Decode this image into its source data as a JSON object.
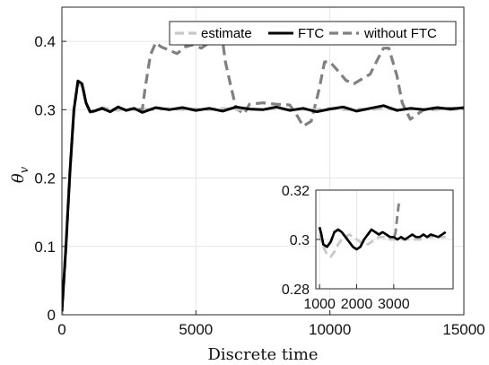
{
  "chart_data": [
    {
      "type": "line",
      "xlabel": "Discrete time",
      "ylabel": "θ",
      "ylabel_subscript": "v",
      "xlim": [
        0,
        15000
      ],
      "ylim": [
        0,
        0.45
      ],
      "xticks": [
        "0",
        "5000",
        "10000",
        "15000"
      ],
      "yticks": [
        "0",
        "0.1",
        "0.2",
        "0.3",
        "0.4"
      ],
      "xtick_values": [
        0,
        5000,
        10000,
        15000
      ],
      "ytick_values": [
        0,
        0.1,
        0.2,
        0.3,
        0.4
      ],
      "grid": true,
      "legend_position": "top-right",
      "series": [
        {
          "name": "estimate",
          "color": "#c8c8c8",
          "style": "dashed",
          "x": [
            0,
            150,
            300,
            450,
            600,
            750,
            900,
            1050,
            1200,
            1500,
            1800,
            2100,
            2400,
            2700,
            3000,
            3500,
            4000,
            4500,
            5000,
            5500,
            6000,
            6500,
            7000,
            7500,
            8000,
            8500,
            9000,
            9500,
            10000,
            10500,
            11000,
            11500,
            12000,
            12500,
            13000,
            13500,
            14000,
            14500,
            15000
          ],
          "y": [
            0,
            0.1,
            0.21,
            0.3,
            0.338,
            0.335,
            0.31,
            0.296,
            0.297,
            0.303,
            0.301,
            0.299,
            0.302,
            0.3,
            0.301,
            0.3,
            0.302,
            0.3,
            0.301,
            0.3,
            0.302,
            0.3,
            0.301,
            0.3,
            0.302,
            0.3,
            0.301,
            0.3,
            0.302,
            0.3,
            0.301,
            0.3,
            0.302,
            0.3,
            0.301,
            0.3,
            0.302,
            0.3,
            0.302
          ]
        },
        {
          "name": "FTC",
          "color": "#000000",
          "style": "solid",
          "x": [
            0,
            150,
            300,
            450,
            600,
            750,
            900,
            1050,
            1200,
            1500,
            1800,
            2100,
            2400,
            2700,
            3000,
            3500,
            4000,
            4500,
            5000,
            5500,
            6000,
            6500,
            7000,
            7500,
            8000,
            8500,
            9000,
            9500,
            10000,
            10500,
            11000,
            11500,
            12000,
            12500,
            13000,
            13500,
            14000,
            14500,
            15000
          ],
          "y": [
            0.005,
            0.1,
            0.21,
            0.3,
            0.342,
            0.338,
            0.31,
            0.297,
            0.298,
            0.302,
            0.297,
            0.304,
            0.299,
            0.302,
            0.296,
            0.303,
            0.3,
            0.303,
            0.299,
            0.302,
            0.298,
            0.304,
            0.301,
            0.3,
            0.304,
            0.299,
            0.302,
            0.297,
            0.301,
            0.304,
            0.298,
            0.302,
            0.306,
            0.299,
            0.302,
            0.3,
            0.303,
            0.301,
            0.303
          ]
        },
        {
          "name": "without FTC",
          "color": "#808080",
          "style": "dashed",
          "x": [
            0,
            150,
            300,
            450,
            600,
            750,
            900,
            1050,
            1200,
            1500,
            1800,
            2100,
            2400,
            2700,
            3000,
            3100,
            3300,
            3500,
            3700,
            4000,
            4300,
            4600,
            4900,
            5200,
            5500,
            5800,
            6000,
            6100,
            6300,
            6500,
            6800,
            7000,
            7500,
            8000,
            8500,
            8800,
            9000,
            9300,
            9600,
            9800,
            10000,
            10300,
            10600,
            10900,
            11200,
            11500,
            11800,
            12000,
            12200,
            12500,
            12700,
            13000,
            13500,
            14000,
            14500,
            15000
          ],
          "y": [
            0,
            0.1,
            0.21,
            0.3,
            0.342,
            0.338,
            0.31,
            0.297,
            0.298,
            0.302,
            0.297,
            0.304,
            0.299,
            0.302,
            0.3,
            0.33,
            0.38,
            0.398,
            0.392,
            0.387,
            0.382,
            0.392,
            0.395,
            0.39,
            0.398,
            0.402,
            0.4,
            0.37,
            0.335,
            0.302,
            0.294,
            0.308,
            0.31,
            0.308,
            0.307,
            0.29,
            0.276,
            0.283,
            0.33,
            0.37,
            0.37,
            0.357,
            0.343,
            0.338,
            0.345,
            0.352,
            0.375,
            0.39,
            0.39,
            0.35,
            0.31,
            0.286,
            0.3,
            0.301,
            0.302,
            0.302
          ]
        }
      ]
    },
    {
      "type": "line",
      "inset": true,
      "xlim": [
        900,
        4600
      ],
      "ylim": [
        0.28,
        0.32
      ],
      "xticks": [
        "1000",
        "2000",
        "3000"
      ],
      "yticks": [
        "0.28",
        "0.3",
        "0.32"
      ],
      "xtick_values": [
        1000,
        2000,
        3000
      ],
      "ytick_values": [
        0.28,
        0.3,
        0.32
      ],
      "grid": true,
      "series": [
        {
          "name": "estimate",
          "color": "#c8c8c8",
          "style": "dashed",
          "x": [
            1000,
            1100,
            1200,
            1300,
            1400,
            1500,
            1600,
            1700,
            1800,
            1900,
            2000,
            2100,
            2200,
            2300,
            2400,
            2500,
            2600,
            2700,
            2800,
            2900,
            3000,
            3100,
            3200,
            3300,
            3400,
            3500,
            3600,
            3700,
            3800,
            3900,
            4000,
            4200,
            4400
          ],
          "y": [
            0.302,
            0.297,
            0.294,
            0.293,
            0.295,
            0.298,
            0.3,
            0.301,
            0.302,
            0.301,
            0.3,
            0.299,
            0.298,
            0.298,
            0.299,
            0.3,
            0.301,
            0.301,
            0.301,
            0.3,
            0.3,
            0.3,
            0.3,
            0.3,
            0.3,
            0.3,
            0.3,
            0.3,
            0.3,
            0.301,
            0.301,
            0.301,
            0.301
          ]
        },
        {
          "name": "FTC",
          "color": "#000000",
          "style": "solid",
          "x": [
            1000,
            1050,
            1100,
            1200,
            1300,
            1400,
            1500,
            1600,
            1700,
            1800,
            1900,
            2000,
            2100,
            2200,
            2300,
            2400,
            2500,
            2600,
            2700,
            2800,
            2900,
            3000,
            3100,
            3200,
            3300,
            3400,
            3500,
            3600,
            3700,
            3800,
            3900,
            4000,
            4200,
            4400
          ],
          "y": [
            0.305,
            0.302,
            0.298,
            0.297,
            0.299,
            0.303,
            0.304,
            0.303,
            0.301,
            0.299,
            0.297,
            0.296,
            0.297,
            0.3,
            0.302,
            0.304,
            0.303,
            0.302,
            0.303,
            0.302,
            0.301,
            0.301,
            0.3,
            0.301,
            0.3,
            0.301,
            0.302,
            0.301,
            0.301,
            0.302,
            0.301,
            0.302,
            0.301,
            0.303
          ]
        },
        {
          "name": "without FTC",
          "color": "#808080",
          "style": "dashed",
          "x": [
            1000,
            1050,
            1100,
            1200,
            1300,
            1400,
            1500,
            1600,
            1700,
            1800,
            1900,
            2000,
            2100,
            2200,
            2300,
            2400,
            2500,
            2600,
            2700,
            2800,
            2900,
            3000,
            3050,
            3100,
            3150
          ],
          "y": [
            0.305,
            0.302,
            0.298,
            0.297,
            0.299,
            0.303,
            0.304,
            0.303,
            0.301,
            0.299,
            0.297,
            0.296,
            0.297,
            0.3,
            0.302,
            0.304,
            0.303,
            0.302,
            0.303,
            0.302,
            0.301,
            0.3,
            0.303,
            0.31,
            0.316
          ]
        }
      ]
    }
  ]
}
